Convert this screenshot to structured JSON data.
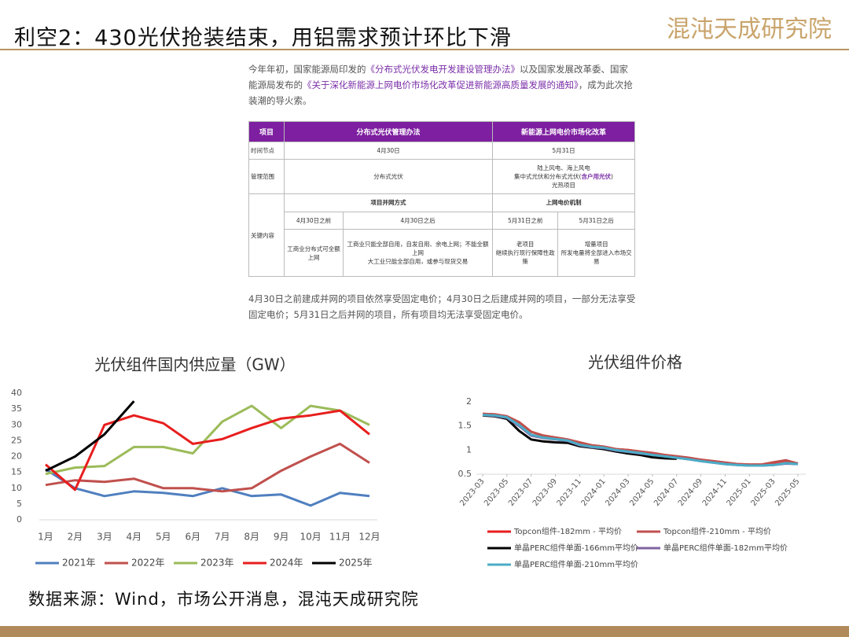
{
  "header": {
    "title": "利空2：430光伏抢装结束，用铝需求预计环比下滑",
    "logo": "混沌天成研究院"
  },
  "intro": [
    "今年年初，国家能源局印发的",
    "《分布式光伏发电开发建设管理办法》",
    "以及国家发展改革委、国家能源局发布的",
    "《关于深化新能源上网电价市场化改革促进新能源高质量发展的通知》",
    "，成为此次抢装潮的导火索。"
  ],
  "table": {
    "header": [
      "项目",
      "分布式光伏管理办法",
      "新能源上网电价市场化改革"
    ],
    "time": [
      "时间节点",
      "4月30日",
      "5月31日"
    ],
    "scope": {
      "label": "管理范围",
      "left": "分布式光伏",
      "right": [
        "陆上风电、海上风电",
        "集中式光伏和分布式光伏(",
        "含户用光伏",
        ")",
        "光热项目"
      ]
    },
    "key": {
      "label": "关键内容",
      "groups": [
        "项目并网方式",
        "上网电价机制"
      ],
      "sub": [
        "4月30日之前",
        "4月30日之后",
        "5月31日之前",
        "5月31日之后"
      ],
      "cells": [
        [
          "工商业分布式可全额上网"
        ],
        [
          "工商业只能全部自用，自发自用、余电上网；不能全额上网",
          "大工业只能全部自用，或参与现货交易"
        ],
        [
          "老项目",
          "继续执行现行保障性政策"
        ],
        [
          "增量项目",
          "所发电量将全部进入市场交易"
        ]
      ]
    }
  },
  "note": "4月30日之前建成并网的项目依然享受固定电价；4月30日之后建成并网的项目，一部分无法享受固定电价；5月31日之后并网的项目，所有项目均无法享受固定电价。",
  "source": "数据来源：Wind，市场公开消息，混沌天成研究院",
  "chart_data": [
    {
      "type": "line",
      "title": "光伏组件国内供应量（GW）",
      "categories": [
        "1月",
        "2月",
        "3月",
        "4月",
        "5月",
        "6月",
        "7月",
        "8月",
        "9月",
        "10月",
        "11月",
        "12月"
      ],
      "ylim": [
        0,
        40
      ],
      "yticks": [
        0,
        5,
        10,
        15,
        20,
        25,
        30,
        35,
        40
      ],
      "series": [
        {
          "name": "2021年",
          "color": "#4f7fbf",
          "values": [
            16,
            10,
            7.5,
            9,
            8.5,
            7.5,
            10,
            7.5,
            8,
            4.5,
            8.5,
            7.5
          ]
        },
        {
          "name": "2022年",
          "color": "#c0504d",
          "values": [
            11,
            12.5,
            12,
            13,
            10,
            10,
            9,
            10,
            15.5,
            20,
            24,
            18
          ]
        },
        {
          "name": "2023年",
          "color": "#9bbb59",
          "values": [
            14.5,
            16.5,
            17,
            23,
            23,
            21,
            31,
            36,
            29,
            36,
            34.5,
            30
          ]
        },
        {
          "name": "2024年",
          "color": "#e81e1e",
          "values": [
            17.5,
            9.5,
            30,
            33,
            30.5,
            24,
            25.5,
            29,
            32,
            33,
            34.5,
            27
          ]
        },
        {
          "name": "2025年",
          "color": "#000000",
          "values": [
            15.5,
            20,
            27,
            37.5,
            null,
            null,
            null,
            null,
            null,
            null,
            null,
            null
          ]
        }
      ]
    },
    {
      "type": "line",
      "title": "光伏组件价格",
      "x": [
        "2023-03",
        "2023-04",
        "2023-05",
        "2023-06",
        "2023-07",
        "2023-08",
        "2023-09",
        "2023-10",
        "2023-11",
        "2023-12",
        "2024-01",
        "2024-02",
        "2024-03",
        "2024-04",
        "2024-05",
        "2024-06",
        "2024-07",
        "2024-08",
        "2024-09",
        "2024-10",
        "2024-11",
        "2024-12",
        "2025-01",
        "2025-02",
        "2025-03",
        "2025-04",
        "2025-05"
      ],
      "xticks": [
        "2023-03",
        "2023-05",
        "2023-07",
        "2023-09",
        "2023-11",
        "2024-01",
        "2024-03",
        "2024-05",
        "2024-07",
        "2024-09",
        "2024-11",
        "2025-01",
        "2025-03",
        "2025-05"
      ],
      "ylim": [
        0.5,
        2
      ],
      "yticks": [
        0.5,
        1,
        1.5,
        2
      ],
      "series": [
        {
          "name": "Topcon组件-182mm - 平均价",
          "color": "#e81e1e",
          "values": [
            1.75,
            1.74,
            1.7,
            1.58,
            1.38,
            1.3,
            1.26,
            1.22,
            1.15,
            1.1,
            1.07,
            1.02,
            1.0,
            0.97,
            0.94,
            0.9,
            0.87,
            0.84,
            0.8,
            0.77,
            0.74,
            0.71,
            0.7,
            0.7,
            0.74,
            0.78,
            0.72
          ]
        },
        {
          "name": "Topcon组件-210mm - 平均价",
          "color": "#c0504d",
          "values": [
            1.75,
            1.74,
            1.7,
            1.58,
            1.38,
            1.3,
            1.26,
            1.22,
            1.16,
            1.1,
            1.07,
            1.02,
            1.0,
            0.97,
            0.94,
            0.9,
            0.87,
            0.84,
            0.8,
            0.77,
            0.74,
            0.71,
            0.7,
            0.7,
            0.75,
            0.79,
            0.72
          ]
        },
        {
          "name": "单晶PERC组件单面-166mm平均价",
          "color": "#000000",
          "values": [
            1.72,
            1.7,
            1.65,
            1.4,
            1.22,
            1.18,
            1.16,
            1.15,
            1.08,
            1.05,
            1.02,
            0.97,
            0.93,
            0.9,
            0.85,
            0.83,
            0.82,
            null,
            null,
            null,
            null,
            null,
            null,
            null,
            null,
            null,
            null
          ]
        },
        {
          "name": "单晶PERC组件单面-182mm平均价",
          "color": "#8064a2",
          "values": [
            1.73,
            1.71,
            1.67,
            1.5,
            1.3,
            1.25,
            1.22,
            1.19,
            1.1,
            1.06,
            1.04,
            0.99,
            0.96,
            0.93,
            0.9,
            0.87,
            0.84,
            0.81,
            0.77,
            0.74,
            0.71,
            0.69,
            0.68,
            0.68,
            0.69,
            0.72,
            0.71
          ]
        },
        {
          "name": "单晶PERC组件单面-210mm平均价",
          "color": "#4bacc6",
          "values": [
            1.73,
            1.72,
            1.68,
            1.52,
            1.32,
            1.26,
            1.23,
            1.2,
            1.11,
            1.07,
            1.05,
            1.0,
            0.97,
            0.94,
            0.9,
            0.87,
            0.84,
            0.81,
            0.77,
            0.74,
            0.71,
            0.69,
            0.68,
            0.68,
            0.69,
            0.73,
            0.71
          ]
        }
      ]
    }
  ]
}
